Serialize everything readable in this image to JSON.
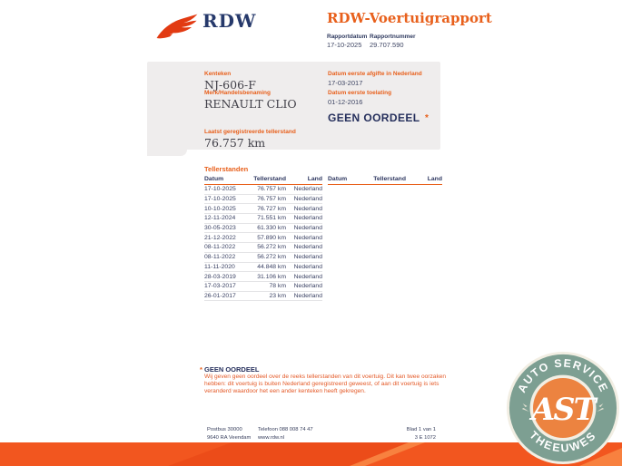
{
  "header": {
    "logo_text": "RDW",
    "title": "RDW-Voertuigrapport",
    "report_date_label": "Rapportdatum",
    "report_date": "17-10-2025",
    "report_number_label": "Rapportnummer",
    "report_number": "29.707.590"
  },
  "summary": {
    "kenteken_label": "Kenteken",
    "kenteken": "NJ-606-F",
    "merk_label": "Merk/Handelsbenaming",
    "merk": "RENAULT CLIO",
    "tellerstand_label": "Laatst geregistreerde tellerstand",
    "tellerstand": "76.757 km",
    "afgifte_label": "Datum eerste afgifte in Nederland",
    "afgifte": "17-03-2017",
    "toelating_label": "Datum eerste toelating",
    "toelating": "01-12-2016",
    "oordeel": "GEEN OORDEEL",
    "oordeel_mark": "*"
  },
  "table": {
    "title": "Tellerstanden",
    "columns": [
      "Datum",
      "Tellerstand",
      "Land"
    ],
    "rows": [
      [
        "17-10-2025",
        "76.757 km",
        "Nederland"
      ],
      [
        "17-10-2025",
        "76.757 km",
        "Nederland"
      ],
      [
        "10-10-2025",
        "76.727 km",
        "Nederland"
      ],
      [
        "12-11-2024",
        "71.551 km",
        "Nederland"
      ],
      [
        "30-05-2023",
        "61.330 km",
        "Nederland"
      ],
      [
        "21-12-2022",
        "57.890 km",
        "Nederland"
      ],
      [
        "08-11-2022",
        "56.272 km",
        "Nederland"
      ],
      [
        "08-11-2022",
        "56.272 km",
        "Nederland"
      ],
      [
        "11-11-2020",
        "44.848 km",
        "Nederland"
      ],
      [
        "28-03-2019",
        "31.106 km",
        "Nederland"
      ],
      [
        "17-03-2017",
        "78 km",
        "Nederland"
      ],
      [
        "26-01-2017",
        "23 km",
        "Nederland"
      ]
    ]
  },
  "note": {
    "mark": "*",
    "title": "GEEN OORDEEL",
    "body": "Wij geven geen oordeel over de reeks tellerstanden van dit voertuig. Dit kan twee oorzaken hebben: dit voertuig is buiten Nederland geregistreerd geweest, of aan dit voertuig is iets veranderd waardoor het een ander kenteken heeft gekregen."
  },
  "footer": {
    "address_line1": "Postbus 30000",
    "address_line2": "9640 RA Veendam",
    "phone": "Telefoon 088 008 74 47",
    "website": "www.rdw.nl",
    "page": "Blad 1 van 1",
    "doc_code": "3 E 1072"
  },
  "badge": {
    "top_text": "AUTO SERVICE",
    "bottom_text": "THEEUWES",
    "monogram": "AST"
  },
  "colors": {
    "accent_orange": "#E8601C",
    "navy": "#252F5C",
    "logo_red": "#E23A12",
    "wave_orange": "#F2561F",
    "badge_green": "#7D9F92",
    "badge_orange": "#EC8340",
    "badge_cream": "#F2EEE3"
  }
}
